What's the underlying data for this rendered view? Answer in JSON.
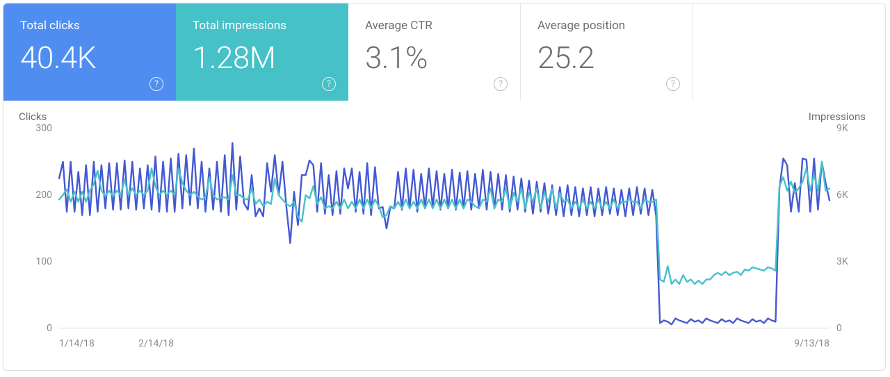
{
  "card": {
    "background": "#ffffff",
    "border_color": "#e0e0e0"
  },
  "metrics": [
    {
      "id": "total-clicks",
      "label": "Total clicks",
      "value": "40.4K",
      "active": true,
      "bg": "#4f8ef0",
      "text": "#ffffff",
      "help_color": "#ffffff"
    },
    {
      "id": "total-impressions",
      "label": "Total impressions",
      "value": "1.28M",
      "active": true,
      "bg": "#47c1c8",
      "text": "#ffffff",
      "help_color": "#ffffff"
    },
    {
      "id": "average-ctr",
      "label": "Average CTR",
      "value": "3.1%",
      "active": false,
      "bg": "#ffffff",
      "text": "#6b6f73",
      "help_color": "#9a9ea2"
    },
    {
      "id": "average-position",
      "label": "Average position",
      "value": "25.2",
      "active": false,
      "bg": "#ffffff",
      "text": "#6b6f73",
      "help_color": "#9a9ea2"
    }
  ],
  "chart": {
    "type": "line",
    "left_axis": {
      "title": "Clicks",
      "min": 0,
      "max": 300,
      "ticks": [
        0,
        100,
        200,
        300
      ]
    },
    "right_axis": {
      "title": "Impressions",
      "min": 0,
      "max": 9000,
      "ticks": [
        {
          "v": 0,
          "label": "0"
        },
        {
          "v": 3000,
          "label": "3K"
        },
        {
          "v": 6000,
          "label": "6K"
        },
        {
          "v": 9000,
          "label": "9K"
        }
      ]
    },
    "x_axis": {
      "ticks": [
        {
          "pos": 0.0,
          "label": "1/14/18"
        },
        {
          "pos": 0.126,
          "label": "2/14/18"
        },
        {
          "pos": 1.0,
          "label": "9/13/18"
        }
      ]
    },
    "baseline_color": "#d9d9d9",
    "tick_text_color": "#878b8f",
    "series": [
      {
        "name": "clicks",
        "axis": "left",
        "color": "#4359d2",
        "stroke_width": 2.4,
        "values": [
          225,
          250,
          175,
          250,
          175,
          235,
          170,
          245,
          170,
          250,
          175,
          245,
          180,
          248,
          178,
          248,
          178,
          252,
          180,
          250,
          178,
          240,
          180,
          245,
          178,
          258,
          175,
          250,
          175,
          255,
          175,
          262,
          180,
          260,
          185,
          270,
          180,
          250,
          175,
          240,
          178,
          250,
          175,
          260,
          170,
          278,
          178,
          258,
          188,
          178,
          230,
          168,
          180,
          168,
          248,
          205,
          260,
          200,
          250,
          182,
          128,
          205,
          155,
          230,
          230,
          252,
          245,
          175,
          248,
          172,
          230,
          170,
          236,
          172,
          240,
          210,
          240,
          175,
          235,
          172,
          248,
          170,
          242,
          180,
          182,
          150,
          182,
          180,
          235,
          178,
          240,
          180,
          238,
          175,
          232,
          180,
          240,
          182,
          236,
          178,
          232,
          180,
          238,
          178,
          234,
          180,
          236,
          178,
          232,
          180,
          238,
          178,
          235,
          180,
          232,
          178,
          230,
          175,
          228,
          178,
          225,
          175,
          222,
          172,
          220,
          175,
          218,
          172,
          215,
          170,
          212,
          168,
          215,
          170,
          212,
          168,
          210,
          170,
          212,
          168,
          210,
          170,
          212,
          172,
          210,
          170,
          208,
          168,
          210,
          170,
          212,
          172,
          210,
          170,
          208,
          168,
          8,
          12,
          10,
          6,
          15,
          12,
          10,
          8,
          14,
          10,
          12,
          8,
          15,
          12,
          10,
          8,
          14,
          10,
          12,
          8,
          15,
          12,
          10,
          8,
          14,
          10,
          12,
          8,
          15,
          12,
          10,
          210,
          255,
          245,
          175,
          218,
          175,
          255,
          253,
          175,
          255,
          178,
          250,
          218,
          192
        ]
      },
      {
        "name": "impressions",
        "axis": "right",
        "color": "#47c1c8",
        "stroke_width": 2.4,
        "values": [
          5800,
          6000,
          6250,
          5700,
          6150,
          5700,
          6150,
          5700,
          6200,
          6500,
          7100,
          6200,
          5950,
          6200,
          5950,
          6200,
          6000,
          6700,
          6000,
          6300,
          6000,
          6200,
          6000,
          6200,
          7200,
          6400,
          6000,
          6200,
          6000,
          6200,
          6000,
          7200,
          6550,
          6200,
          6000,
          6150,
          5950,
          5800,
          5900,
          6800,
          6000,
          5800,
          5900,
          5900,
          5800,
          6900,
          6000,
          6000,
          5850,
          5800,
          6300,
          5600,
          5800,
          5500,
          5700,
          5600,
          6750,
          6000,
          5800,
          5600,
          5500,
          5700,
          5000,
          4800,
          6000,
          5850,
          6400,
          5600,
          5900,
          5400,
          5500,
          5400,
          5700,
          5400,
          5800,
          5400,
          5700,
          5400,
          5800,
          5400,
          5800,
          5400,
          5800,
          5500,
          5000,
          5100,
          5500,
          5400,
          5700,
          5400,
          5800,
          5400,
          5700,
          5400,
          5800,
          5400,
          5800,
          5400,
          5800,
          5400,
          5800,
          5400,
          5800,
          5400,
          5800,
          5400,
          5800,
          5700,
          5500,
          5400,
          5800,
          5700,
          6300,
          5400,
          5800,
          5700,
          6300,
          5400,
          6100,
          5700,
          6300,
          5400,
          6100,
          5700,
          6300,
          5400,
          6100,
          5700,
          6300,
          5400,
          6100,
          5700,
          5800,
          5400,
          5700,
          5400,
          5800,
          5400,
          5700,
          5400,
          5800,
          5400,
          5700,
          5400,
          5800,
          5400,
          5700,
          5700,
          5800,
          5700,
          5700,
          5400,
          5800,
          5700,
          5700,
          5800,
          2200,
          2100,
          2800,
          2000,
          2200,
          2000,
          2400,
          2100,
          2200,
          2000,
          2150,
          2000,
          2200,
          2200,
          2400,
          2500,
          2400,
          2550,
          2400,
          2500,
          2550,
          2400,
          2650,
          2600,
          2750,
          2700,
          2650,
          2600,
          2750,
          2700,
          2600,
          6400,
          6800,
          6200,
          6600,
          6100,
          6300,
          6600,
          7200,
          6200,
          6900,
          6200,
          7500,
          6200,
          6300
        ]
      }
    ]
  }
}
